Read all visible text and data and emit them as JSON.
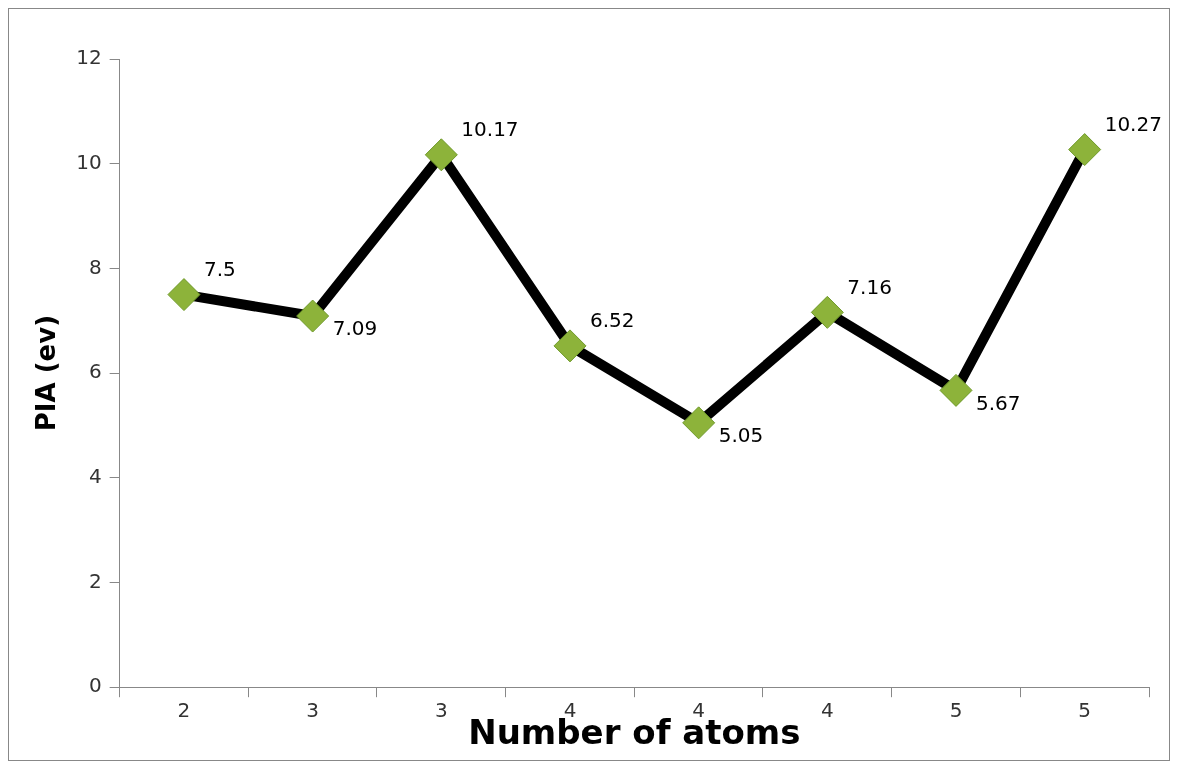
{
  "chart_data": {
    "type": "line",
    "xlabel": "Number of atoms",
    "ylabel": "PIA (ev)",
    "categories": [
      "2",
      "3",
      "3",
      "4",
      "4",
      "4",
      "5",
      "5"
    ],
    "series": [
      {
        "color": "#000000",
        "values": [
          7.5,
          7.09,
          10.17,
          6.52,
          5.05,
          7.16,
          5.67,
          10.27
        ]
      }
    ],
    "ylim": [
      0,
      12
    ],
    "yticks": [
      0,
      2,
      4,
      6,
      8,
      10,
      12
    ],
    "grid": false,
    "legend": false,
    "marker": "diamond",
    "line_style": "solid",
    "data_labels": true
  }
}
